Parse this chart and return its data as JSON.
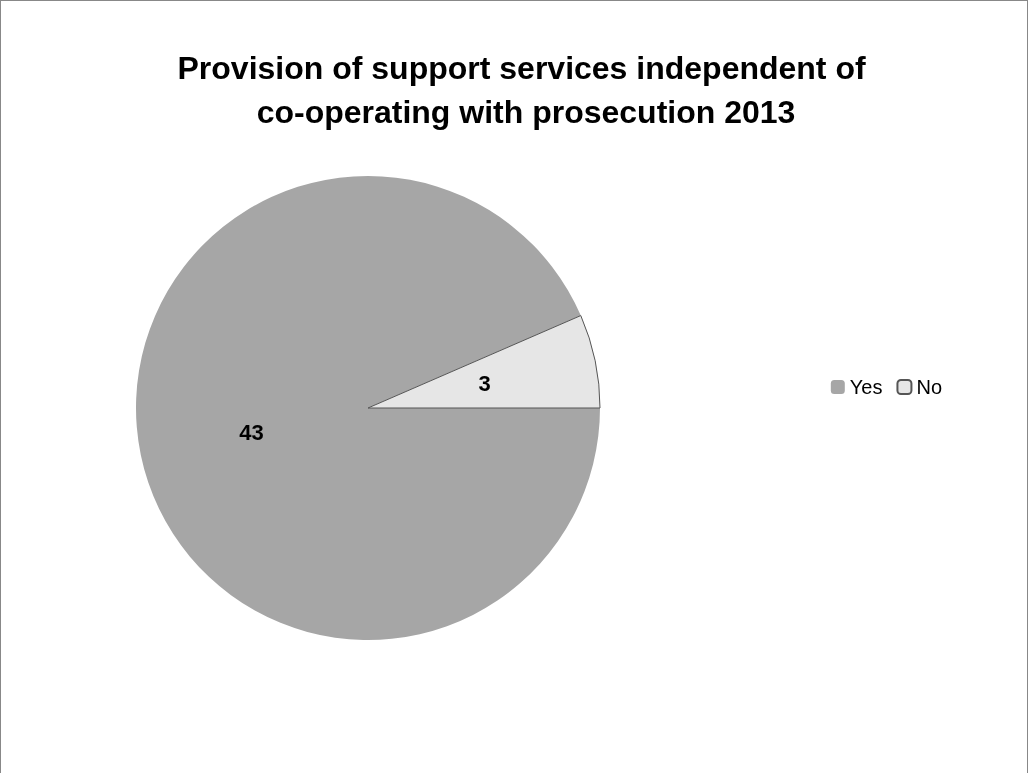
{
  "chart_data": {
    "type": "pie",
    "title": "Provision of support services independent of co-operating with prosecution 2013",
    "categories": [
      "Yes",
      "No"
    ],
    "values": [
      43,
      3
    ],
    "colors": [
      "#a6a6a6",
      "#e6e6e6"
    ],
    "data_labels": true,
    "legend": "right"
  }
}
